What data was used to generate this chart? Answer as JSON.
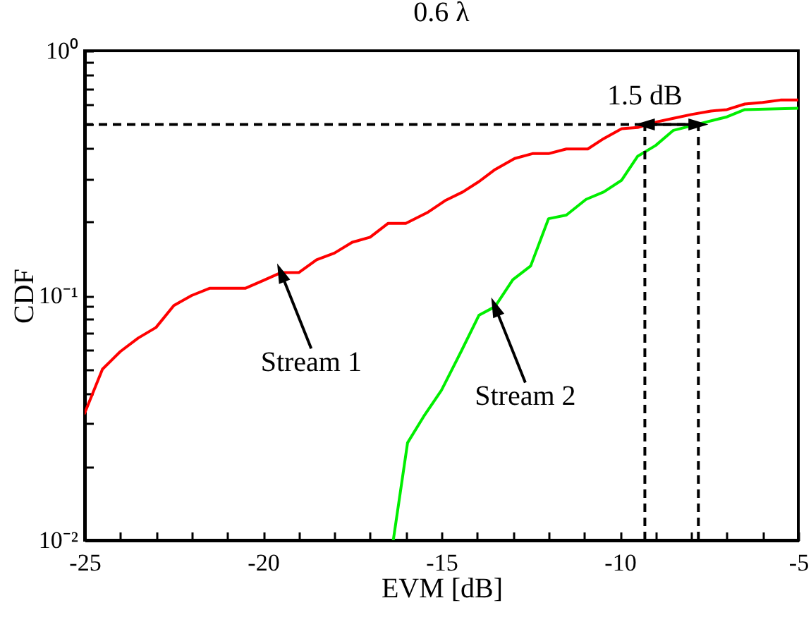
{
  "chart_data": {
    "type": "line",
    "title": "0.6 λ",
    "xlabel": "EVM [dB]",
    "ylabel": "CDF",
    "xlim": [
      -25,
      -5
    ],
    "ylim": [
      0.01,
      1
    ],
    "log": "y",
    "grid": false,
    "xticks": [
      -25,
      {
        "value": -24,
        "label": null
      },
      {
        "value": -23,
        "label": null
      },
      {
        "value": -22,
        "label": null
      },
      {
        "value": -21,
        "label": null
      },
      -20,
      {
        "value": -19,
        "label": null
      },
      {
        "value": -18,
        "label": null
      },
      {
        "value": -17,
        "label": null
      },
      {
        "value": -16,
        "label": null
      },
      -15,
      {
        "value": -14,
        "label": null
      },
      {
        "value": -13,
        "label": null
      },
      {
        "value": -12,
        "label": null
      },
      {
        "value": -11,
        "label": null
      },
      -10,
      {
        "value": -9,
        "label": null
      },
      {
        "value": -8,
        "label": null
      },
      {
        "value": -7,
        "label": null
      },
      {
        "value": -6,
        "label": null
      },
      -5
    ],
    "yticks": [
      {
        "value": 0.01,
        "label": "10⁻²"
      },
      {
        "value": 0.02,
        "label": null
      },
      {
        "value": 0.03,
        "label": null
      },
      {
        "value": 0.04,
        "label": null
      },
      {
        "value": 0.05,
        "label": null
      },
      {
        "value": 0.06,
        "label": null
      },
      {
        "value": 0.07,
        "label": null
      },
      {
        "value": 0.08,
        "label": null
      },
      {
        "value": 0.09,
        "label": null
      },
      {
        "value": 0.1,
        "label": "10⁻¹"
      },
      {
        "value": 0.2,
        "label": null
      },
      {
        "value": 0.3,
        "label": null
      },
      {
        "value": 0.4,
        "label": null
      },
      {
        "value": 0.5,
        "label": null
      },
      {
        "value": 0.6,
        "label": null
      },
      {
        "value": 0.7,
        "label": null
      },
      {
        "value": 0.8,
        "label": null
      },
      {
        "value": 0.9,
        "label": null
      },
      {
        "value": 1,
        "label": "10⁰"
      }
    ],
    "series": [
      {
        "name": "Stream 1",
        "color": "#ff0000",
        "x": [
          -25,
          -24.5,
          -24,
          -23.5,
          -23,
          -22.5,
          -22,
          -21.5,
          -20.5,
          -20,
          -19.5,
          -19,
          -18.5,
          -18,
          -17.5,
          -17,
          -16.5,
          -16,
          -15.4,
          -14.9,
          -14.4,
          -13.95,
          -13.5,
          -12.95,
          -12.45,
          -12,
          -11.5,
          -10.9,
          -10.45,
          -9.95,
          -9.5,
          -8.95,
          -8.5,
          -8,
          -7.45,
          -7,
          -6.5,
          -6,
          -5.5,
          -5
        ],
        "values": [
          0.033,
          0.05,
          0.059,
          0.067,
          0.074,
          0.091,
          0.1,
          0.107,
          0.107,
          0.115,
          0.124,
          0.124,
          0.14,
          0.149,
          0.165,
          0.173,
          0.197,
          0.197,
          0.218,
          0.244,
          0.265,
          0.292,
          0.327,
          0.363,
          0.38,
          0.38,
          0.397,
          0.397,
          0.438,
          0.48,
          0.486,
          0.513,
          0.53,
          0.549,
          0.567,
          0.575,
          0.606,
          0.615,
          0.629,
          0.629
        ]
      },
      {
        "name": "Stream 2",
        "color": "#00ee00",
        "x": [
          -16.35,
          -15.95,
          -15.5,
          -15,
          -14.45,
          -13.95,
          -13.5,
          -13,
          -12.5,
          -12,
          -11.5,
          -10.95,
          -10.45,
          -9.95,
          -9.5,
          -9,
          -8.5,
          -7.8,
          -7,
          -6.5,
          -5
        ],
        "values": [
          0.01,
          0.025,
          0.032,
          0.041,
          0.059,
          0.083,
          0.09,
          0.116,
          0.132,
          0.206,
          0.213,
          0.247,
          0.265,
          0.296,
          0.371,
          0.41,
          0.473,
          0.502,
          0.537,
          0.575,
          0.582
        ]
      }
    ],
    "ref_lines": [
      {
        "axis": "y",
        "value": 0.5,
        "color": "#000000",
        "line_style": "dashed"
      },
      {
        "axis": "x",
        "value": -9.3,
        "color": "#000000",
        "line_style": "dashed"
      },
      {
        "axis": "x",
        "value": -7.8,
        "color": "#000000",
        "line_style": "dashed"
      }
    ],
    "annotations": [
      "1.5 dB"
    ]
  }
}
